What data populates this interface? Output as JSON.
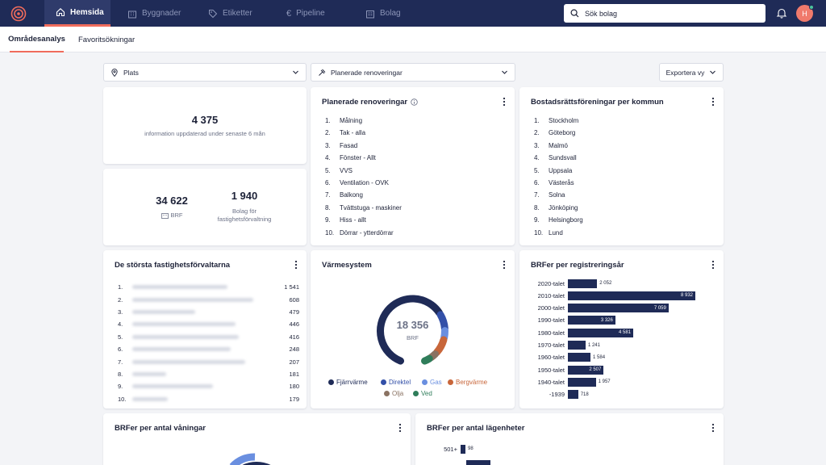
{
  "nav": {
    "tabs": [
      {
        "label": "Hemsida",
        "icon": "home-icon",
        "active": true
      },
      {
        "label": "Byggnader",
        "icon": "building-icon"
      },
      {
        "label": "Etiketter",
        "icon": "tag-icon"
      },
      {
        "label": "Pipeline",
        "icon": "euro-icon"
      },
      {
        "label": "Bolag",
        "icon": "company-icon"
      }
    ],
    "search_placeholder": "Sök bolag",
    "avatar_initial": "H"
  },
  "subtabs": [
    "Områdesanalys",
    "Favoritsökningar"
  ],
  "filters": {
    "place": "Plats",
    "renovations": "Planerade renoveringar",
    "export": "Exportera vy"
  },
  "stat1": {
    "value": "4 375",
    "label": "information uppdaterad under senaste 6 mån"
  },
  "stat2": {
    "brf_value": "34 622",
    "brf_label": "BRF",
    "bolag_value": "1 940",
    "bolag_label_1": "Bolag för",
    "bolag_label_2": "fastighetsförvaltning"
  },
  "renov": {
    "title": "Planerade renoveringar",
    "items": [
      "Målning",
      "Tak - alla",
      "Fasad",
      "Fönster - Allt",
      "VVS",
      "Ventilation - OVK",
      "Balkong",
      "Tvättstuga - maskiner",
      "Hiss - allt",
      "Dörrar - ytterdörrar"
    ]
  },
  "kommun": {
    "title": "Bostadsrättsföreningar per kommun",
    "items": [
      "Stockholm",
      "Göteborg",
      "Malmö",
      "Sundsvall",
      "Uppsala",
      "Västerås",
      "Solna",
      "Jönköping",
      "Helsingborg",
      "Lund"
    ]
  },
  "managers": {
    "title": "De största fastighetsförvaltarna",
    "values": [
      "1 541",
      "608",
      "479",
      "446",
      "416",
      "248",
      "207",
      "181",
      "180",
      "179"
    ]
  },
  "heating": {
    "title": "Värmesystem",
    "total": "18 356",
    "unit": "BRF",
    "segments": [
      {
        "name": "Fjärrvärme",
        "color": "#1f2b57",
        "share": 0.66
      },
      {
        "name": "Direktel",
        "color": "#3350a8",
        "share": 0.09
      },
      {
        "name": "Gas",
        "color": "#6a8fe0",
        "share": 0.05
      },
      {
        "name": "Bergvärme",
        "color": "#c8663a",
        "share": 0.09
      },
      {
        "name": "Olja",
        "color": "#8a7262",
        "share": 0.04
      },
      {
        "name": "Ved",
        "color": "#2f7d5a",
        "share": 0.04
      }
    ]
  },
  "reg_year": {
    "title": "BRFer per registreringsår",
    "rows": [
      {
        "label": "2020-talet",
        "value": 2052,
        "display": "2 052"
      },
      {
        "label": "2010-talet",
        "value": 8932,
        "display": "8 932"
      },
      {
        "label": "2000-talet",
        "value": 7059,
        "display": "7 059"
      },
      {
        "label": "1990-talet",
        "value": 3326,
        "display": "3 326"
      },
      {
        "label": "1980-talet",
        "value": 4581,
        "display": "4 581"
      },
      {
        "label": "1970-talet",
        "value": 1241,
        "display": "1 241"
      },
      {
        "label": "1960-talet",
        "value": 1584,
        "display": "1 584"
      },
      {
        "label": "1950-talet",
        "value": 2507,
        "display": "2 507"
      },
      {
        "label": "1940-talet",
        "value": 1957,
        "display": "1 957"
      },
      {
        "label": "-1939",
        "value": 718,
        "display": "718"
      }
    ]
  },
  "floors": {
    "title": "BRFer per antal våningar"
  },
  "apartments": {
    "title": "BRFer per antal lägenheter",
    "first_label": "501+",
    "first_value": "98"
  }
}
